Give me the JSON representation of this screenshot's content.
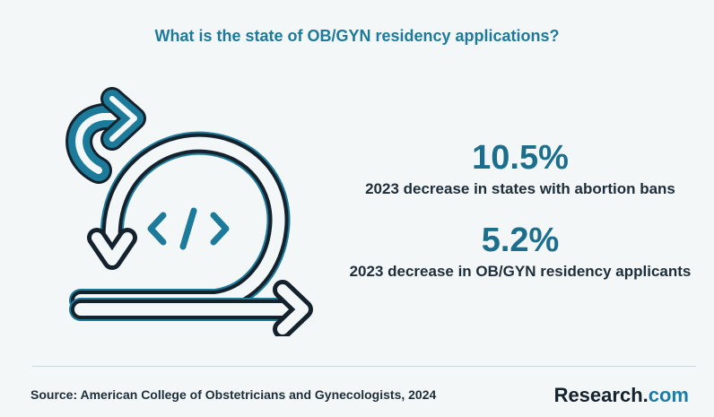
{
  "title": "What is the state of OB/GYN residency applications?",
  "illustration": {
    "icon_name": "agile-cycle-code-icon",
    "glyph_left": "<",
    "glyph_slash": "/",
    "glyph_right": ">"
  },
  "stats": [
    {
      "value": "10.5%",
      "label": "2023 decrease in states with abortion bans"
    },
    {
      "value": "5.2%",
      "label": "2023 decrease in OB/GYN residency applicants"
    }
  ],
  "footer": {
    "source": "Source: American College of Obstetricians and Gynecologists, 2024",
    "brand_main": "Research.",
    "brand_accent": "com"
  },
  "colors": {
    "accent": "#1c7a9a",
    "dark": "#14222d",
    "background": "#f4f7f8"
  }
}
